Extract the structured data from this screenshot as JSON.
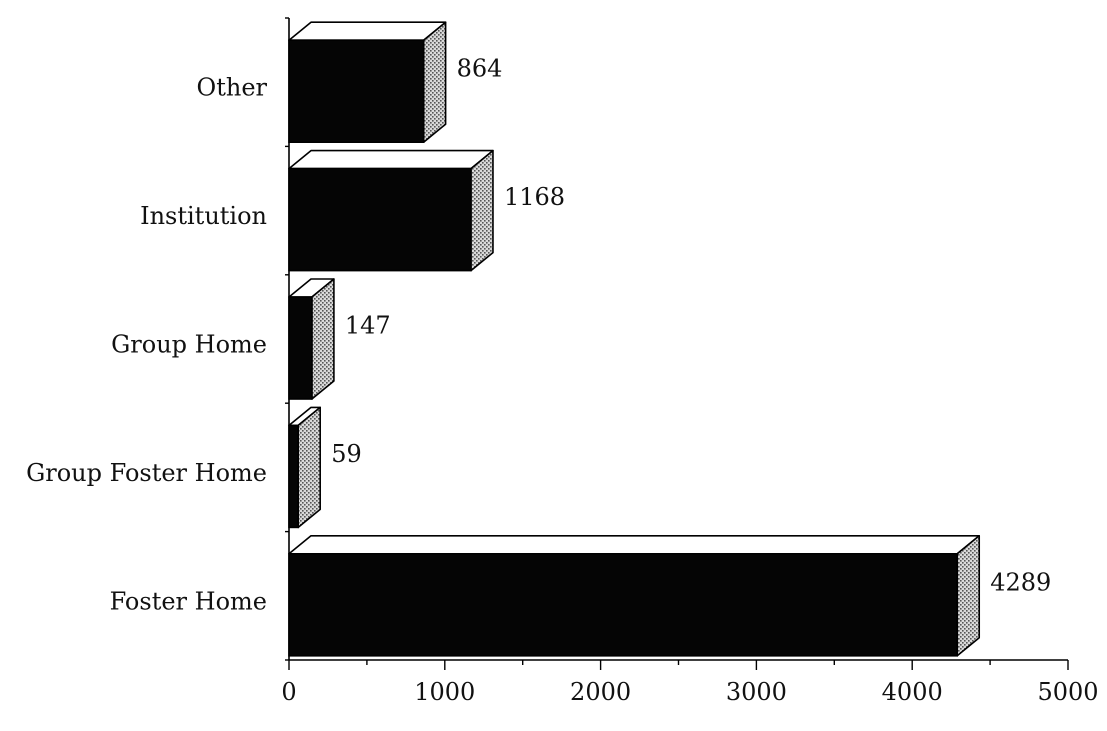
{
  "chart_data": {
    "type": "bar",
    "orientation": "horizontal",
    "three_d": true,
    "categories": [
      "Other",
      "Institution",
      "Group Home",
      "Group Foster Home",
      "Foster Home"
    ],
    "values": [
      864,
      1168,
      147,
      59,
      4289
    ],
    "value_labels": [
      "864",
      "1168",
      "147",
      "59",
      "4289"
    ],
    "title": "",
    "xlabel": "",
    "ylabel": "",
    "xlim": [
      0,
      5000
    ],
    "x_ticks": [
      0,
      1000,
      2000,
      3000,
      4000,
      5000
    ],
    "x_tick_labels": [
      "0",
      "1000",
      "2000",
      "3000",
      "4000",
      "5000"
    ],
    "grid": false,
    "legend": "none",
    "colors": {
      "bar_front": "#050505",
      "bar_top": "#ffffff",
      "bar_side": "#bdbdbd",
      "axis": "#000000"
    }
  }
}
